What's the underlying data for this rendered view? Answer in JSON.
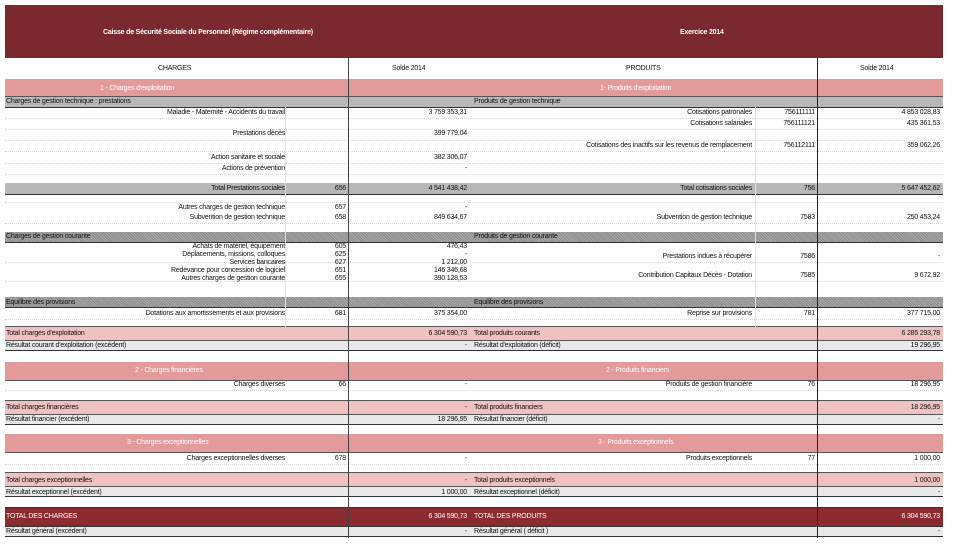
{
  "header": {
    "title": "Caisse de Sécurité Sociale du Personnel (Régime complémentaire)",
    "exercise": "Exercice 2014"
  },
  "columns": {
    "charges": "CHARGES",
    "solde_left": "Solde 2014",
    "produits": "PRODUITS",
    "solde_right": "Solde 2014"
  },
  "colors": {
    "header": "#7a2a2e",
    "section": "#e39a9a",
    "total": "#efc1c1",
    "grand_total": "#8b2b2f"
  },
  "charges": {
    "s1": "1 - Charges d'exploitation",
    "gt_title": "Charges de gestion technique : prestations",
    "gt_items": [
      {
        "label": "Maladie - Maternité - Accidents du travail",
        "code": "",
        "value": "3 759 353,31"
      },
      {
        "label": "Prestations décès",
        "code": "",
        "value": "399 779,04"
      },
      {
        "label": "Action sanitaire et sociale",
        "code": "",
        "value": "382 306,07"
      },
      {
        "label": "Actions de prévention",
        "code": "",
        "value": "-"
      }
    ],
    "total_prest": {
      "label": "Total Prestations sociales",
      "code": "656",
      "value": "4 541 438,42"
    },
    "autres_gt": {
      "label": "Autres charges de gestion technique",
      "code": "657",
      "value": "-"
    },
    "subv_gt": {
      "label": "Subvention de gestion technique",
      "code": "658",
      "value": "849 634,67"
    },
    "gc_title": "Charges de gestion courante",
    "gc_items": [
      {
        "label": "Achats de matériel, équipement",
        "code": "605",
        "value": "476,43"
      },
      {
        "label": "Déplacements, missions, colloques",
        "code": "625",
        "value": "-"
      },
      {
        "label": "Services bancaires",
        "code": "627",
        "value": "1 212,00"
      },
      {
        "label": "Redevance pour concession de logiciel",
        "code": "651",
        "value": "146 346,68"
      },
      {
        "label": "Autres charges de gestion courante",
        "code": "655",
        "value": "390 128,53"
      }
    ],
    "eq_title": "Equilibre des provisions",
    "dotations": {
      "label": "Dotations aux amortissements et aux provisions",
      "code": "681",
      "value": "375 354,00"
    },
    "total_expl": {
      "label": "Total charges d'exploitation",
      "value": "6 304 590,73"
    },
    "res_expl": {
      "label": "Résultat courant d'exploitation (excédent)",
      "value": "-"
    },
    "s2": "2 - Charges financières",
    "diverses": {
      "label": "Charges diverses",
      "code": "66",
      "value": "-"
    },
    "total_fin": {
      "label": "Total charges financières",
      "value": "-"
    },
    "res_fin": {
      "label": "Résultat financier (excédent)",
      "value": "18 296,95"
    },
    "s3": "3 - Charges exceptionnelles",
    "exc_div": {
      "label": "Charges exceptionnelles diverses",
      "code": "678",
      "value": "-"
    },
    "total_exc": {
      "label": "Total charges exceptionnelles",
      "value": "-"
    },
    "res_exc": {
      "label": "Résultat exceptionnel (excédent)",
      "value": "1 000,00"
    },
    "grand_total": {
      "label": "TOTAL DES CHARGES",
      "value": "6 304 590,73"
    },
    "res_gen": {
      "label": "Résultat général (excédent)",
      "value": "-"
    }
  },
  "produits": {
    "s1": "1- Produits d'exploitation",
    "gt_title": "Produits de gestion technique",
    "gt_items": [
      {
        "label": "Cotisations patronales",
        "code": "756111111",
        "value": "4 853 028,83"
      },
      {
        "label": "Cotisations salariales",
        "code": "756111121",
        "value": "435 361,53"
      },
      {
        "label": "Cotisations des inactifs sur les revenus de remplacement",
        "code": "756112111",
        "value": "359 062,26"
      }
    ],
    "total_cot": {
      "label": "Total cotisations sociales",
      "code": "756",
      "value": "5 647 452,62"
    },
    "subv_gt": {
      "label": "Subvention de gestion technique",
      "code": "7583",
      "value": "250 453,24"
    },
    "gc_title": "Produits de gestion courante",
    "indues": {
      "label": "Prestations indues à récupérer",
      "code": "7586",
      "value": "-"
    },
    "contrib": {
      "label": "Contribution Capitaux Décès - Dotation",
      "code": "7585",
      "value": "9 672,92"
    },
    "eq_title": "Equilibre des provisions",
    "reprise": {
      "label": "Reprise sur provisions",
      "code": "781",
      "value": "377 715,00"
    },
    "total_cour": {
      "label": "Total produits courants",
      "value": "6 285 293,78"
    },
    "res_expl": {
      "label": "Résultat d'exploitation (déficit)",
      "value": "19 296,95"
    },
    "s2": "2 - Produits financiers",
    "gest_fin": {
      "label": "Produits de gestion financière",
      "code": "76",
      "value": "18 296,95"
    },
    "total_fin": {
      "label": "Total produits financiers",
      "value": "18 296,95"
    },
    "res_fin": {
      "label": "Résultat financier (déficit)",
      "value": "-"
    },
    "s3": "3 - Produits exceptionnels",
    "exc": {
      "label": "Produits exceptionnels",
      "code": "77",
      "value": "1 000,00"
    },
    "total_exc": {
      "label": "Total produits exceptionnels",
      "value": "1 000,00"
    },
    "res_exc": {
      "label": "Résultat exceptionnel (déficit)",
      "value": "-"
    },
    "grand_total": {
      "label": "TOTAL DES PRODUITS",
      "value": "6 304 590,73"
    },
    "res_gen": {
      "label": "Résultat général ( déficit )",
      "value": "-"
    }
  }
}
